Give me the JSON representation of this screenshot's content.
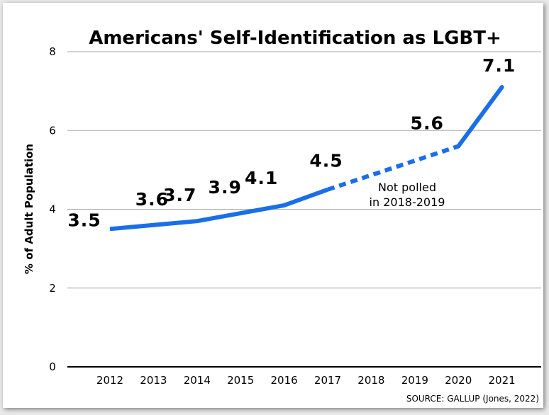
{
  "chart_data": {
    "type": "line",
    "title": "Americans' Self-Identification as LGBT+",
    "xlabel": "",
    "ylabel": "% of Adult Population",
    "categories": [
      "2012",
      "2013",
      "2014",
      "2015",
      "2016",
      "2017",
      "2018",
      "2019",
      "2020",
      "2021"
    ],
    "x": [
      2012,
      2013,
      2014,
      2015,
      2016,
      2017,
      2020,
      2021
    ],
    "values": [
      3.5,
      3.6,
      3.7,
      3.9,
      4.1,
      4.5,
      5.6,
      7.1
    ],
    "data_labels": [
      "3.5",
      "3.6",
      "3.7",
      "3.9",
      "4.1",
      "4.5",
      "5.6",
      "7.1"
    ],
    "ylim": [
      0,
      8
    ],
    "yticks": [
      0,
      2,
      4,
      6,
      8
    ],
    "grid": true,
    "legend": "none",
    "gap_segment": {
      "from": 2017,
      "to": 2020,
      "style": "dashed"
    },
    "annotation": [
      "Not polled",
      "in 2018-2019"
    ],
    "source": "SOURCE: GALLUP  (Jones, 2022)",
    "line_color": "#1a6ee8"
  }
}
